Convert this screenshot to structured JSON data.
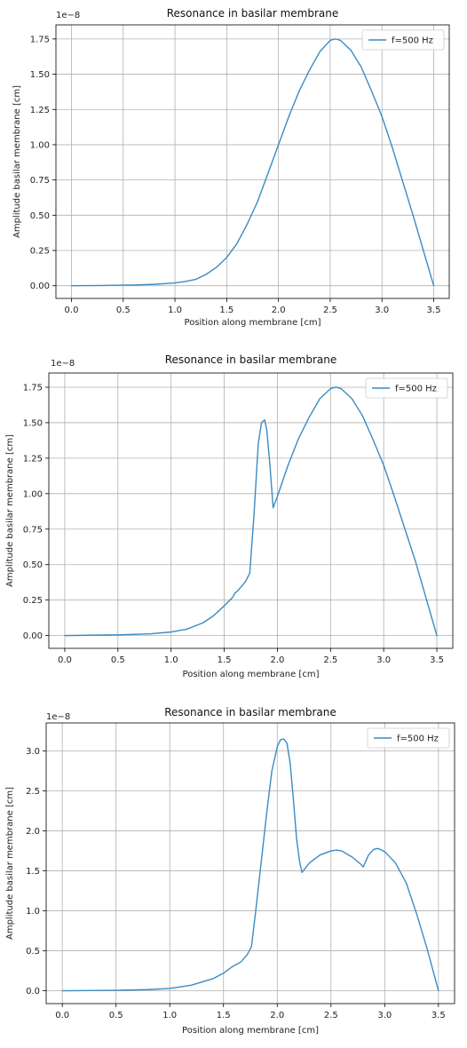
{
  "colors": {
    "series": "#3b8bc2"
  },
  "chart_data": [
    {
      "type": "line",
      "title": "Resonance in basilar membrane",
      "xlabel": "Position along membrane [cm]",
      "ylabel": "Amplitude basilar membrane [cm]",
      "y_offset_label": "1e−8",
      "xlim": [
        -0.15,
        3.65
      ],
      "ylim": [
        -0.09,
        1.85
      ],
      "xticks": [
        0,
        0.5,
        1.0,
        1.5,
        2.0,
        2.5,
        3.0,
        3.5
      ],
      "xtick_labels": [
        "0.0",
        "0.5",
        "1.0",
        "1.5",
        "2.0",
        "2.5",
        "3.0",
        "3.5"
      ],
      "yticks": [
        0,
        0.25,
        0.5,
        0.75,
        1.0,
        1.25,
        1.5,
        1.75
      ],
      "ytick_labels": [
        "0.00",
        "0.25",
        "0.50",
        "0.75",
        "1.00",
        "1.25",
        "1.50",
        "1.75"
      ],
      "grid": true,
      "legend_position": "top-right",
      "series": [
        {
          "name": "f=500 Hz",
          "x": [
            0.0,
            0.3,
            0.6,
            0.8,
            1.0,
            1.1,
            1.2,
            1.3,
            1.4,
            1.5,
            1.6,
            1.7,
            1.8,
            1.9,
            2.0,
            2.1,
            2.2,
            2.3,
            2.4,
            2.5,
            2.55,
            2.6,
            2.7,
            2.8,
            2.9,
            3.0,
            3.1,
            3.2,
            3.3,
            3.4,
            3.5
          ],
          "y": [
            0.0,
            0.002,
            0.005,
            0.01,
            0.02,
            0.03,
            0.045,
            0.08,
            0.13,
            0.2,
            0.3,
            0.44,
            0.6,
            0.8,
            1.0,
            1.2,
            1.38,
            1.53,
            1.66,
            1.74,
            1.75,
            1.74,
            1.67,
            1.55,
            1.38,
            1.2,
            0.98,
            0.74,
            0.5,
            0.25,
            0.0
          ]
        }
      ]
    },
    {
      "type": "line",
      "title": "Resonance in basilar membrane",
      "xlabel": "Position along membrane [cm]",
      "ylabel": "Amplitude basilar membrane [cm]",
      "y_offset_label": "1e−8",
      "xlim": [
        -0.15,
        3.65
      ],
      "ylim": [
        -0.09,
        1.85
      ],
      "xticks": [
        0,
        0.5,
        1.0,
        1.5,
        2.0,
        2.5,
        3.0,
        3.5
      ],
      "xtick_labels": [
        "0.0",
        "0.5",
        "1.0",
        "1.5",
        "2.0",
        "2.5",
        "3.0",
        "3.5"
      ],
      "yticks": [
        0,
        0.25,
        0.5,
        0.75,
        1.0,
        1.25,
        1.5,
        1.75
      ],
      "ytick_labels": [
        "0.00",
        "0.25",
        "0.50",
        "0.75",
        "1.00",
        "1.25",
        "1.50",
        "1.75"
      ],
      "grid": true,
      "legend_position": "top-right",
      "series": [
        {
          "name": "f=500 Hz",
          "x": [
            0.0,
            0.5,
            0.8,
            1.0,
            1.15,
            1.2,
            1.3,
            1.4,
            1.5,
            1.58,
            1.6,
            1.62,
            1.7,
            1.74,
            1.78,
            1.82,
            1.85,
            1.88,
            1.9,
            1.93,
            1.96,
            2.0,
            2.1,
            2.2,
            2.3,
            2.4,
            2.5,
            2.55,
            2.6,
            2.7,
            2.8,
            2.9,
            3.0,
            3.1,
            3.2,
            3.3,
            3.4,
            3.5
          ],
          "y": [
            0.0,
            0.005,
            0.012,
            0.025,
            0.045,
            0.06,
            0.09,
            0.14,
            0.21,
            0.27,
            0.3,
            0.31,
            0.38,
            0.44,
            0.85,
            1.35,
            1.5,
            1.52,
            1.45,
            1.2,
            0.9,
            0.98,
            1.2,
            1.39,
            1.54,
            1.67,
            1.74,
            1.75,
            1.74,
            1.67,
            1.55,
            1.38,
            1.2,
            0.98,
            0.75,
            0.52,
            0.26,
            0.0
          ]
        }
      ]
    },
    {
      "type": "line",
      "title": "Resonance in basilar membrane",
      "xlabel": "Position along membrane [cm]",
      "ylabel": "Amplitude basilar membrane [cm]",
      "y_offset_label": "1e−8",
      "xlim": [
        -0.15,
        3.65
      ],
      "ylim": [
        -0.16,
        3.35
      ],
      "xticks": [
        0,
        0.5,
        1.0,
        1.5,
        2.0,
        2.5,
        3.0,
        3.5
      ],
      "xtick_labels": [
        "0.0",
        "0.5",
        "1.0",
        "1.5",
        "2.0",
        "2.5",
        "3.0",
        "3.5"
      ],
      "yticks": [
        0,
        0.5,
        1.0,
        1.5,
        2.0,
        2.5,
        3.0
      ],
      "ytick_labels": [
        "0.0",
        "0.5",
        "1.0",
        "1.5",
        "2.0",
        "2.5",
        "3.0"
      ],
      "grid": true,
      "legend_position": "top-right",
      "series": [
        {
          "name": "f=500 Hz",
          "x": [
            0.0,
            0.5,
            0.8,
            1.0,
            1.2,
            1.4,
            1.5,
            1.58,
            1.62,
            1.66,
            1.72,
            1.76,
            1.8,
            1.85,
            1.9,
            1.95,
            2.0,
            2.03,
            2.06,
            2.09,
            2.12,
            2.15,
            2.18,
            2.21,
            2.23,
            2.3,
            2.4,
            2.5,
            2.55,
            2.6,
            2.7,
            2.78,
            2.8,
            2.85,
            2.9,
            2.94,
            3.0,
            3.1,
            3.2,
            3.3,
            3.4,
            3.5
          ],
          "y": [
            0.0,
            0.006,
            0.015,
            0.03,
            0.07,
            0.15,
            0.22,
            0.3,
            0.33,
            0.36,
            0.45,
            0.55,
            1.0,
            1.6,
            2.2,
            2.75,
            3.05,
            3.14,
            3.15,
            3.1,
            2.85,
            2.4,
            1.9,
            1.6,
            1.48,
            1.6,
            1.7,
            1.75,
            1.76,
            1.75,
            1.67,
            1.58,
            1.55,
            1.7,
            1.77,
            1.78,
            1.74,
            1.6,
            1.35,
            0.95,
            0.5,
            0.0
          ]
        }
      ]
    }
  ]
}
